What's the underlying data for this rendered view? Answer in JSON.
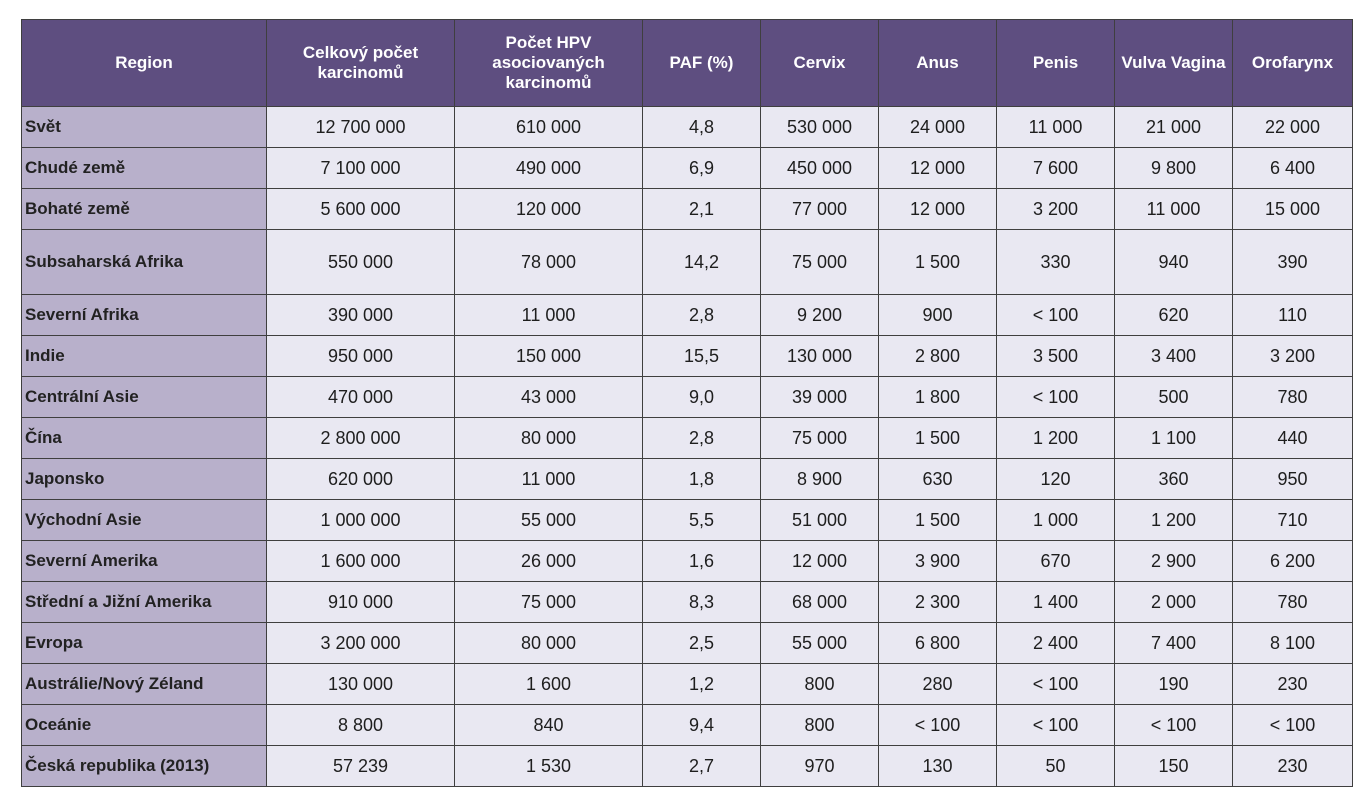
{
  "table": {
    "headers": [
      "Region",
      "Celkový počet karcinomů",
      "Počet HPV asociovaných karcinomů",
      "PAF (%)",
      "Cervix",
      "Anus",
      "Penis",
      "Vulva Vagina",
      "Orofarynx"
    ],
    "rows": [
      [
        "Svět",
        "12 700 000",
        "610 000",
        "4,8",
        "530 000",
        "24 000",
        "11 000",
        "21 000",
        "22 000"
      ],
      [
        "Chudé země",
        "7 100 000",
        "490 000",
        "6,9",
        "450 000",
        "12 000",
        "7 600",
        "9 800",
        "6 400"
      ],
      [
        "Bohaté země",
        "5 600 000",
        "120 000",
        "2,1",
        "77 000",
        "12 000",
        "3 200",
        "11 000",
        "15 000"
      ],
      [
        "Subsaharská Afrika",
        "550 000",
        "78 000",
        "14,2",
        "75 000",
        "1 500",
        "330",
        "940",
        "390"
      ],
      [
        "Severní Afrika",
        "390 000",
        "11 000",
        "2,8",
        "9 200",
        "900",
        "< 100",
        "620",
        "110"
      ],
      [
        "Indie",
        "950 000",
        "150 000",
        "15,5",
        "130 000",
        "2 800",
        "3 500",
        "3 400",
        "3 200"
      ],
      [
        "Centrální Asie",
        "470 000",
        "43 000",
        "9,0",
        "39 000",
        "1 800",
        "< 100",
        "500",
        "780"
      ],
      [
        "Čína",
        "2 800 000",
        "80 000",
        "2,8",
        "75 000",
        "1 500",
        "1 200",
        "1 100",
        "440"
      ],
      [
        "Japonsko",
        "620 000",
        "11 000",
        "1,8",
        "8 900",
        "630",
        "120",
        "360",
        "950"
      ],
      [
        "Východní Asie",
        "1 000 000",
        "55 000",
        "5,5",
        "51 000",
        "1 500",
        "1 000",
        "1 200",
        "710"
      ],
      [
        "Severní Amerika",
        "1 600 000",
        "26 000",
        "1,6",
        "12 000",
        "3 900",
        "670",
        "2 900",
        "6 200"
      ],
      [
        "Střední a Jižní Amerika",
        "910 000",
        "75 000",
        "8,3",
        "68 000",
        "2 300",
        "1 400",
        "2 000",
        "780"
      ],
      [
        "Evropa",
        "3 200 000",
        "80 000",
        "2,5",
        "55 000",
        "6 800",
        "2 400",
        "7 400",
        "8 100"
      ],
      [
        "Austrálie/Nový Zéland",
        "130 000",
        "1 600",
        "1,2",
        "800",
        "280",
        "< 100",
        "190",
        "230"
      ],
      [
        "Oceánie",
        "8 800",
        "840",
        "9,4",
        "800",
        "< 100",
        "< 100",
        "< 100",
        "< 100"
      ],
      [
        "Česká republika (2013)",
        "57 239",
        "1 530",
        "2,7",
        "970",
        "130",
        "50",
        "150",
        "230"
      ]
    ],
    "colors": {
      "header_bg": "#5e4e80",
      "header_text": "#ffffff",
      "region_cell_bg": "#b8b0cb",
      "data_cell_bg": "#e9e8f2",
      "border": "#3f3f3f"
    }
  }
}
